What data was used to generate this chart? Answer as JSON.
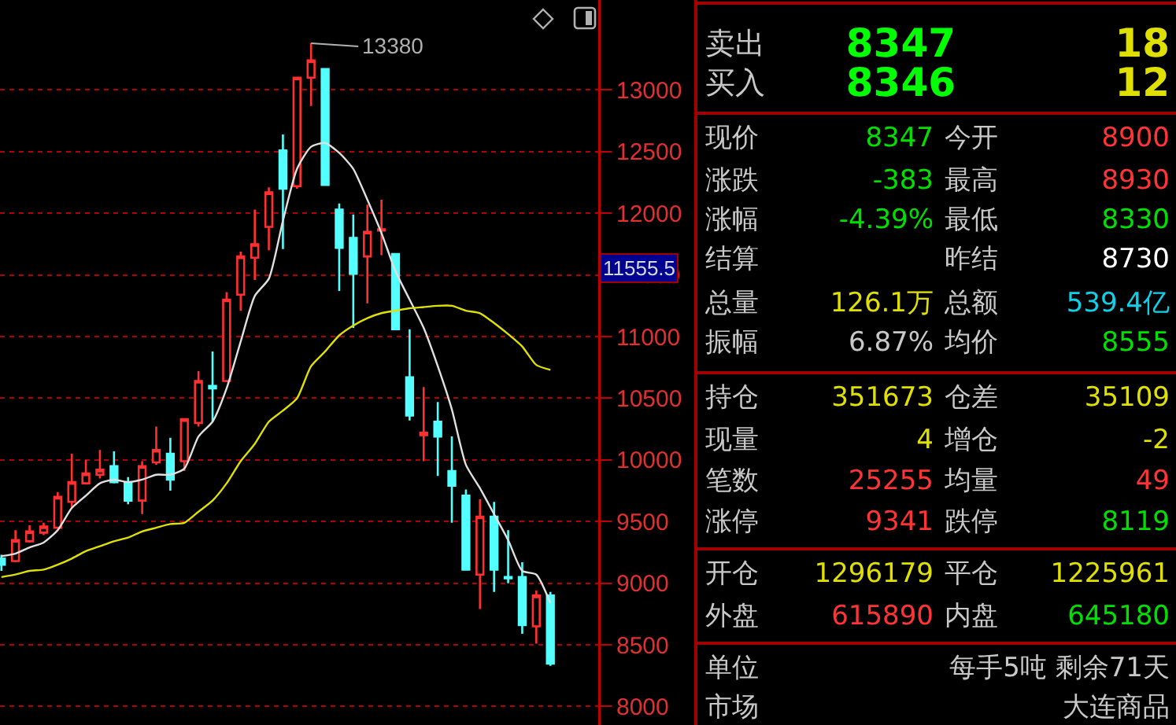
{
  "chart_data": [
    {
      "type": "candlestick",
      "categories": [
        null,
        null,
        null,
        null,
        null,
        null,
        null,
        null,
        null,
        null,
        null,
        null,
        null,
        null,
        null,
        null,
        null,
        null,
        null,
        null,
        null,
        null,
        null,
        null,
        null,
        null,
        null,
        null,
        null,
        null,
        null,
        null,
        null,
        null,
        null,
        null,
        null,
        null,
        null,
        null
      ],
      "ohlc": [
        [
          9200,
          9230,
          9100,
          9150
        ],
        [
          9180,
          9430,
          9170,
          9350
        ],
        [
          9340,
          9470,
          9330,
          9420
        ],
        [
          9410,
          9490,
          9390,
          9460
        ],
        [
          9450,
          9740,
          9440,
          9700
        ],
        [
          9660,
          10050,
          9610,
          9820
        ],
        [
          9810,
          10000,
          9800,
          9890
        ],
        [
          9880,
          10080,
          9850,
          9920
        ],
        [
          9950,
          10070,
          9810,
          9820
        ],
        [
          9820,
          9860,
          9640,
          9670
        ],
        [
          9670,
          9990,
          9560,
          9950
        ],
        [
          9980,
          10270,
          9960,
          10080
        ],
        [
          10050,
          10180,
          9750,
          9840
        ],
        [
          9990,
          10330,
          9910,
          10330
        ],
        [
          10300,
          10720,
          10270,
          10640
        ],
        [
          10600,
          10880,
          10310,
          10580
        ],
        [
          10640,
          11360,
          10630,
          11300
        ],
        [
          11340,
          11690,
          11210,
          11650
        ],
        [
          11640,
          12030,
          11460,
          11750
        ],
        [
          11890,
          12210,
          11700,
          12170
        ],
        [
          12510,
          12640,
          11710,
          12200
        ],
        [
          12220,
          13100,
          12200,
          13100
        ],
        [
          13100,
          13380,
          12870,
          13240
        ],
        [
          13170,
          13170,
          12230,
          12230
        ],
        [
          12030,
          12080,
          11370,
          11720
        ],
        [
          11800,
          11990,
          11070,
          11510
        ],
        [
          11650,
          12070,
          11270,
          11850
        ],
        [
          11860,
          12110,
          11660,
          11870
        ],
        [
          11670,
          11670,
          11060,
          11060
        ],
        [
          10670,
          11060,
          10320,
          10360
        ],
        [
          10200,
          10590,
          9990,
          10220
        ],
        [
          10310,
          10470,
          9870,
          10190
        ],
        [
          9910,
          10190,
          9490,
          9790
        ],
        [
          9710,
          9760,
          9110,
          9110
        ],
        [
          9070,
          9680,
          8790,
          9540
        ],
        [
          9540,
          9660,
          8930,
          9110
        ],
        [
          9050,
          9430,
          9000,
          9040
        ],
        [
          9050,
          9170,
          8590,
          8660
        ],
        [
          8650,
          8940,
          8510,
          8900
        ],
        [
          8900,
          8930,
          8330,
          8347
        ]
      ],
      "series": [
        {
          "type": "line",
          "color": "#e0e0e0",
          "values": [
            9220,
            9240,
            9290,
            9330,
            9430,
            9610,
            9710,
            9810,
            9840,
            9820,
            9840,
            9880,
            9880,
            9930,
            10190,
            10310,
            10580,
            10960,
            11330,
            11470,
            11940,
            12360,
            12540,
            12570,
            12490,
            12360,
            12110,
            11840,
            11530,
            11300,
            11070,
            10760,
            10410,
            9960,
            9770,
            9560,
            9350,
            9100,
            9070,
            8840
          ]
        },
        {
          "type": "line",
          "color": "#e0e000",
          "values": [
            9050,
            9070,
            9100,
            9110,
            9150,
            9200,
            9260,
            9300,
            9340,
            9370,
            9420,
            9450,
            9480,
            9490,
            9580,
            9670,
            9810,
            9990,
            10130,
            10310,
            10400,
            10500,
            10760,
            10880,
            11010,
            11090,
            11150,
            11190,
            11210,
            11230,
            11240,
            11250,
            11250,
            11210,
            11190,
            11110,
            11020,
            10920,
            10770,
            10730
          ]
        }
      ],
      "ylim": [
        7850,
        13730
      ],
      "yticks": [
        8000,
        8500,
        9000,
        9500,
        10000,
        10500,
        11000,
        11500,
        12000,
        12500,
        13000
      ],
      "grid": "y",
      "tick_labels": "y",
      "annotations": [
        "13380",
        "11555.5"
      ]
    },
    {
      "type": "other",
      "annotations": [
        "卖出",
        "8347",
        "18",
        "买入",
        "8346",
        "12",
        "现价",
        "8347",
        "今开",
        "8900",
        "涨跌",
        "-383",
        "最高",
        "8930",
        "涨幅",
        "-4.39%",
        "最低",
        "8330",
        "结算",
        "昨结",
        "8730",
        "总量",
        "126.1万",
        "总额",
        "539.4亿",
        "振幅",
        "6.87%",
        "均价",
        "8555",
        "持仓",
        "351673",
        "仓差",
        "35109",
        "现量",
        "4",
        "增仓",
        "-2",
        "笔数",
        "25255",
        "均量",
        "49",
        "涨停",
        "9341",
        "跌停",
        "8119",
        "开仓",
        "1296179",
        "平仓",
        "1225961",
        "外盘",
        "615890",
        "内盘",
        "645180",
        "单位",
        "每手5吨 剩余71天",
        "市场",
        "大连商品"
      ]
    }
  ]
}
